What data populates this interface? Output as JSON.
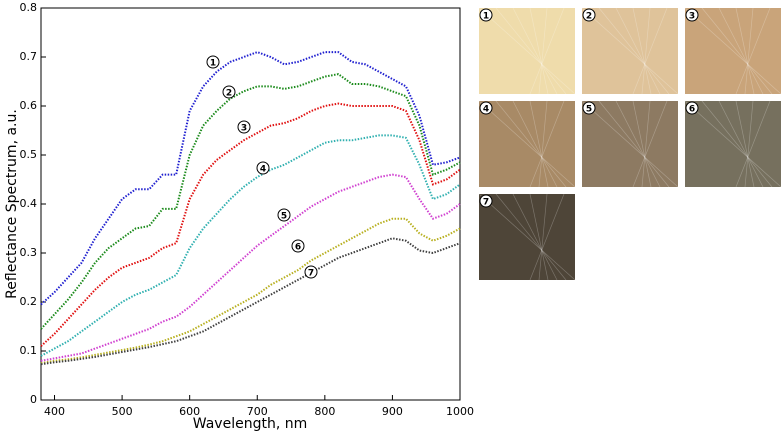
{
  "chart_data": {
    "type": "line",
    "xlabel": "Wavelength, nm",
    "ylabel": "Reflectance Spectrum, a.u.",
    "x": [
      380,
      400,
      420,
      440,
      460,
      480,
      500,
      520,
      540,
      560,
      580,
      600,
      620,
      640,
      660,
      680,
      700,
      720,
      740,
      760,
      780,
      800,
      820,
      840,
      860,
      880,
      900,
      920,
      940,
      960,
      980,
      1000
    ],
    "series": [
      {
        "name": "1",
        "color": "#2020d0",
        "values": [
          0.195,
          0.22,
          0.25,
          0.28,
          0.33,
          0.37,
          0.41,
          0.43,
          0.43,
          0.46,
          0.46,
          0.59,
          0.64,
          0.67,
          0.69,
          0.7,
          0.71,
          0.7,
          0.685,
          0.69,
          0.7,
          0.71,
          0.71,
          0.69,
          0.685,
          0.67,
          0.655,
          0.64,
          0.58,
          0.48,
          0.485,
          0.495
        ]
      },
      {
        "name": "2",
        "color": "#1a8a1a",
        "values": [
          0.145,
          0.175,
          0.205,
          0.24,
          0.28,
          0.31,
          0.33,
          0.35,
          0.355,
          0.39,
          0.39,
          0.5,
          0.56,
          0.59,
          0.615,
          0.63,
          0.64,
          0.64,
          0.635,
          0.64,
          0.65,
          0.66,
          0.665,
          0.645,
          0.645,
          0.64,
          0.63,
          0.62,
          0.56,
          0.46,
          0.47,
          0.485
        ]
      },
      {
        "name": "3",
        "color": "#e01010",
        "values": [
          0.11,
          0.135,
          0.165,
          0.195,
          0.225,
          0.25,
          0.27,
          0.28,
          0.29,
          0.31,
          0.32,
          0.41,
          0.46,
          0.49,
          0.51,
          0.53,
          0.545,
          0.56,
          0.565,
          0.575,
          0.59,
          0.6,
          0.605,
          0.6,
          0.6,
          0.6,
          0.6,
          0.59,
          0.53,
          0.44,
          0.45,
          0.47
        ]
      },
      {
        "name": "4",
        "color": "#30b0b0",
        "values": [
          0.09,
          0.105,
          0.12,
          0.14,
          0.16,
          0.18,
          0.2,
          0.215,
          0.225,
          0.24,
          0.255,
          0.31,
          0.35,
          0.38,
          0.41,
          0.435,
          0.455,
          0.47,
          0.48,
          0.495,
          0.51,
          0.525,
          0.53,
          0.53,
          0.535,
          0.54,
          0.54,
          0.535,
          0.48,
          0.41,
          0.42,
          0.44
        ]
      },
      {
        "name": "5",
        "color": "#d040d0",
        "values": [
          0.08,
          0.085,
          0.09,
          0.095,
          0.105,
          0.115,
          0.125,
          0.135,
          0.145,
          0.16,
          0.17,
          0.19,
          0.215,
          0.24,
          0.265,
          0.29,
          0.315,
          0.335,
          0.355,
          0.375,
          0.395,
          0.41,
          0.425,
          0.435,
          0.445,
          0.455,
          0.46,
          0.455,
          0.41,
          0.37,
          0.38,
          0.4
        ]
      },
      {
        "name": "6",
        "color": "#b8b020",
        "values": [
          0.075,
          0.08,
          0.083,
          0.087,
          0.092,
          0.097,
          0.102,
          0.107,
          0.113,
          0.12,
          0.13,
          0.14,
          0.155,
          0.17,
          0.185,
          0.2,
          0.215,
          0.235,
          0.25,
          0.265,
          0.285,
          0.3,
          0.315,
          0.33,
          0.345,
          0.36,
          0.37,
          0.37,
          0.34,
          0.325,
          0.335,
          0.35
        ]
      },
      {
        "name": "7",
        "color": "#404040",
        "values": [
          0.073,
          0.077,
          0.08,
          0.084,
          0.088,
          0.093,
          0.098,
          0.103,
          0.108,
          0.114,
          0.12,
          0.13,
          0.14,
          0.155,
          0.17,
          0.185,
          0.2,
          0.215,
          0.23,
          0.245,
          0.26,
          0.275,
          0.29,
          0.3,
          0.31,
          0.32,
          0.33,
          0.325,
          0.305,
          0.3,
          0.31,
          0.32
        ]
      }
    ],
    "xlim": [
      380,
      1000
    ],
    "xticks": [
      400,
      500,
      600,
      700,
      800,
      900,
      1000
    ],
    "ylim": [
      0,
      0.8
    ],
    "yticks": [
      0,
      0.1,
      0.2,
      0.3,
      0.4,
      0.5,
      0.6,
      0.7,
      0.8
    ],
    "swatch_colors": [
      "#efdcab",
      "#dfc39a",
      "#c9a47a",
      "#a88a66",
      "#8d7a62",
      "#76705e",
      "#4e4538"
    ]
  }
}
